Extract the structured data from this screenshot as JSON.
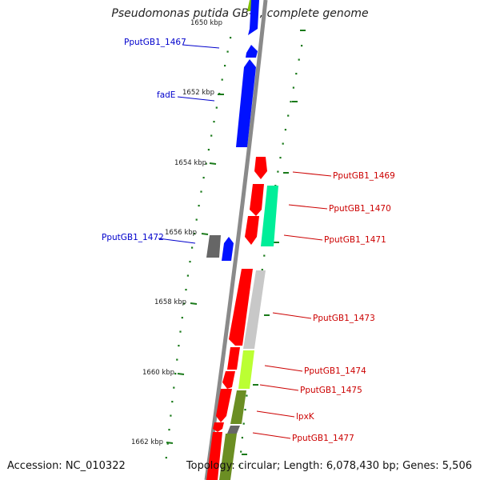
{
  "title": "Pseudomonas putida GB-1, complete genome",
  "footer": {
    "accession": "Accession: NC_010322",
    "summary": "Topology: circular; Length: 6,078,430 bp; Genes: 5,506"
  },
  "colors": {
    "backbone": "#888888",
    "tick": "#1a7a1a",
    "forward_label": "#0000cc",
    "reverse_label": "#cc0000",
    "blue_gene": "#0011ff",
    "red_gene": "#ff0000",
    "teal_gene": "#00ee99",
    "grey_gene": "#c8c8c8",
    "lime_gene": "#bbff33",
    "olive_gene": "#6b8e23",
    "dark_gene": "#666666"
  },
  "tick_labels": [
    {
      "text": "1650 kbp",
      "pos": 1650
    },
    {
      "text": "1652 kbp",
      "pos": 1652
    },
    {
      "text": "1654 kbp",
      "pos": 1654
    },
    {
      "text": "1656 kbp",
      "pos": 1656
    },
    {
      "text": "1658 kbp",
      "pos": 1658
    },
    {
      "text": "1660 kbp",
      "pos": 1660
    },
    {
      "text": "1662 kbp",
      "pos": 1662
    }
  ],
  "gene_labels": [
    {
      "name": "PputGB1_1467",
      "strand": "forward"
    },
    {
      "name": "fadE",
      "strand": "forward"
    },
    {
      "name": "PputGB1_1472",
      "strand": "forward"
    },
    {
      "name": "PputGB1_1469",
      "strand": "reverse"
    },
    {
      "name": "PputGB1_1470",
      "strand": "reverse"
    },
    {
      "name": "PputGB1_1471",
      "strand": "reverse"
    },
    {
      "name": "PputGB1_1473",
      "strand": "reverse"
    },
    {
      "name": "PputGB1_1474",
      "strand": "reverse"
    },
    {
      "name": "PputGB1_1475",
      "strand": "reverse"
    },
    {
      "name": "lpxK",
      "strand": "reverse"
    },
    {
      "name": "PputGB1_1477",
      "strand": "reverse"
    }
  ]
}
